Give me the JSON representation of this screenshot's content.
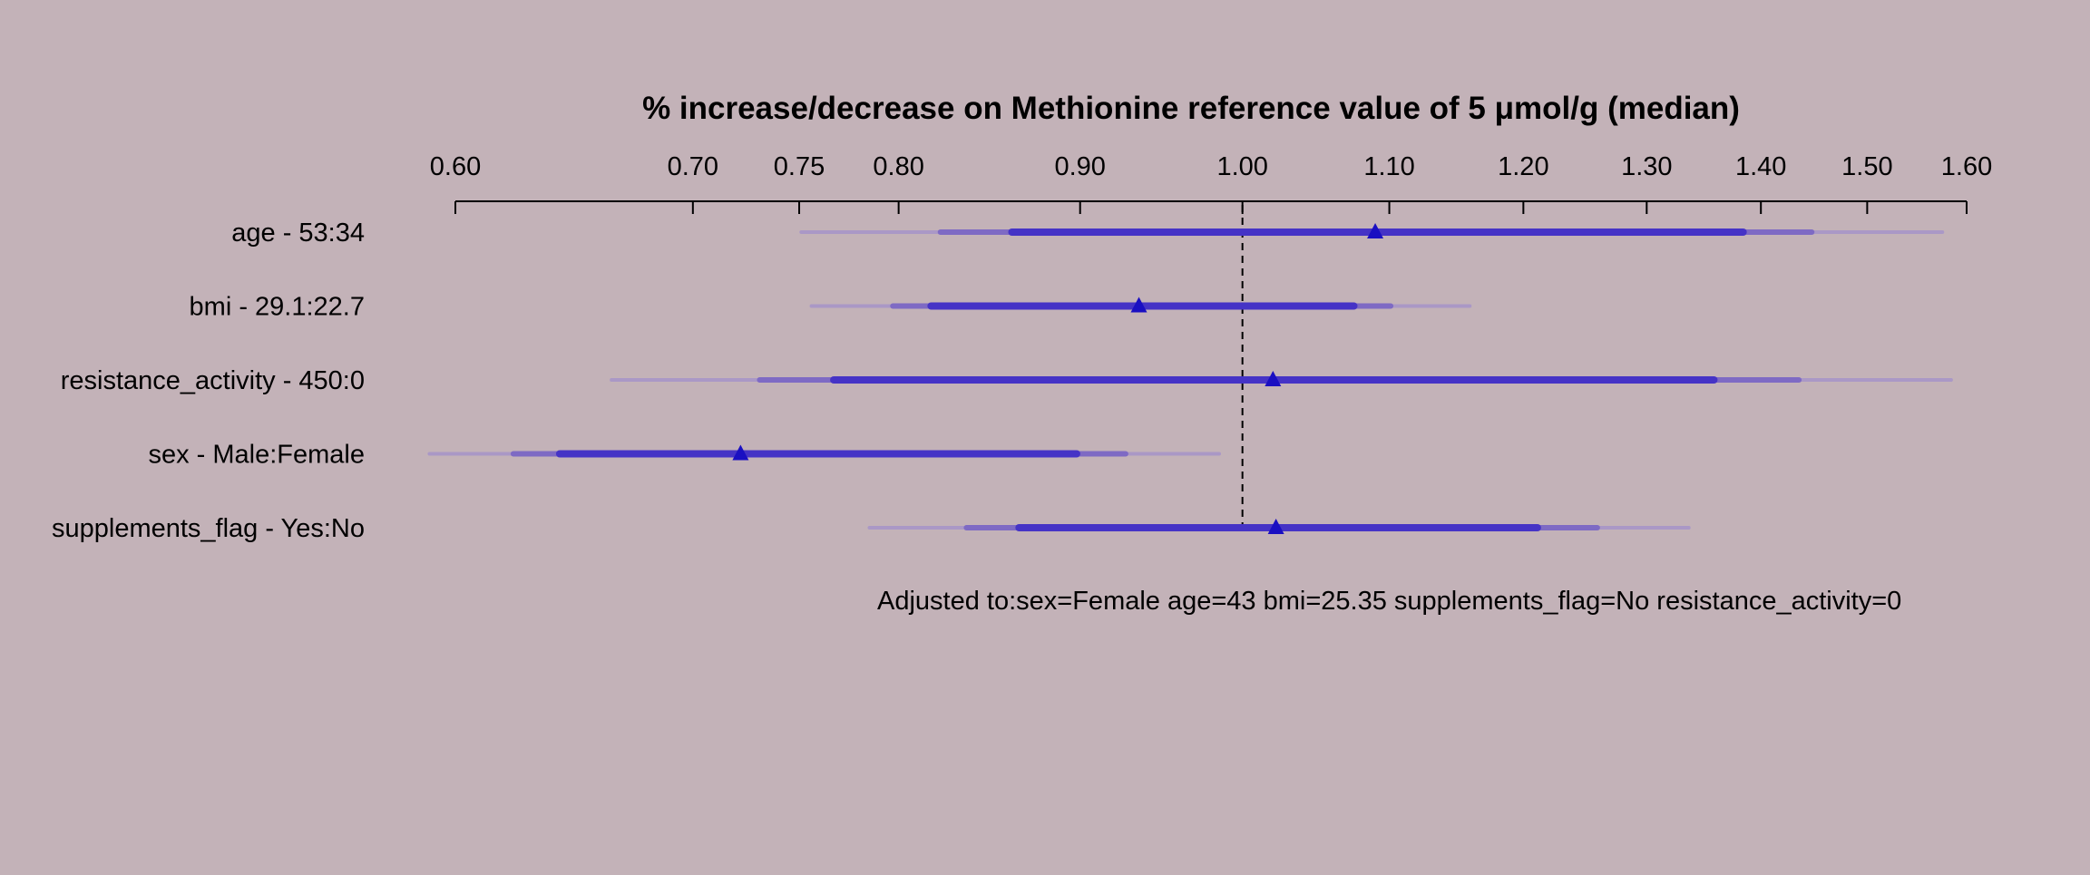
{
  "chart_data": {
    "type": "interval",
    "title": "% increase/decrease on Methionine reference value of 5 μmol/g (median)",
    "scale": "log",
    "xlim": [
      0.6,
      1.6
    ],
    "reference_line": 1.0,
    "ticks": [
      0.6,
      0.7,
      0.75,
      0.8,
      0.9,
      1.0,
      1.1,
      1.2,
      1.3,
      1.4,
      1.5,
      1.6
    ],
    "tick_labels": [
      "0.60",
      "0.70",
      "0.75",
      "0.80",
      "0.90",
      "1.00",
      "1.10",
      "1.20",
      "1.30",
      "1.40",
      "1.50",
      "1.60"
    ],
    "interval_levels": [
      "0.99",
      "0.95",
      "0.9"
    ],
    "rows": [
      {
        "label": "age - 53:34",
        "estimate": 1.09,
        "ci99": [
          0.751,
          1.575
        ],
        "ci95": [
          0.822,
          1.447
        ],
        "ci90": [
          0.861,
          1.384
        ]
      },
      {
        "label": "bmi - 29.1:22.7",
        "estimate": 0.935,
        "ci99": [
          0.756,
          1.159
        ],
        "ci95": [
          0.797,
          1.101
        ],
        "ci90": [
          0.817,
          1.075
        ]
      },
      {
        "label": "resistance_activity - 450:0",
        "estimate": 1.02,
        "ci99": [
          0.664,
          1.584
        ],
        "ci95": [
          0.731,
          1.435
        ],
        "ci90": [
          0.767,
          1.358
        ]
      },
      {
        "label": "sex - Male:Female",
        "estimate": 0.722,
        "ci99": [
          0.59,
          0.985
        ],
        "ci95": [
          0.623,
          0.927
        ],
        "ci90": [
          0.642,
          0.898
        ]
      },
      {
        "label": "supplements_flag - Yes:No",
        "estimate": 1.022,
        "ci99": [
          0.785,
          1.336
        ],
        "ci95": [
          0.836,
          1.259
        ],
        "ci90": [
          0.865,
          1.211
        ]
      }
    ],
    "annotation": "Adjusted to:sex=Female age=43 bmi=25.35 supplements_flag=No resistance_activity=0"
  },
  "colors": {
    "background": "#c3b2b8",
    "ci99": "#aa98c6",
    "ci95": "#7e6ac4",
    "ci90": "#4533c6",
    "estimate": "#1a0fc2",
    "axis": "#000000"
  }
}
